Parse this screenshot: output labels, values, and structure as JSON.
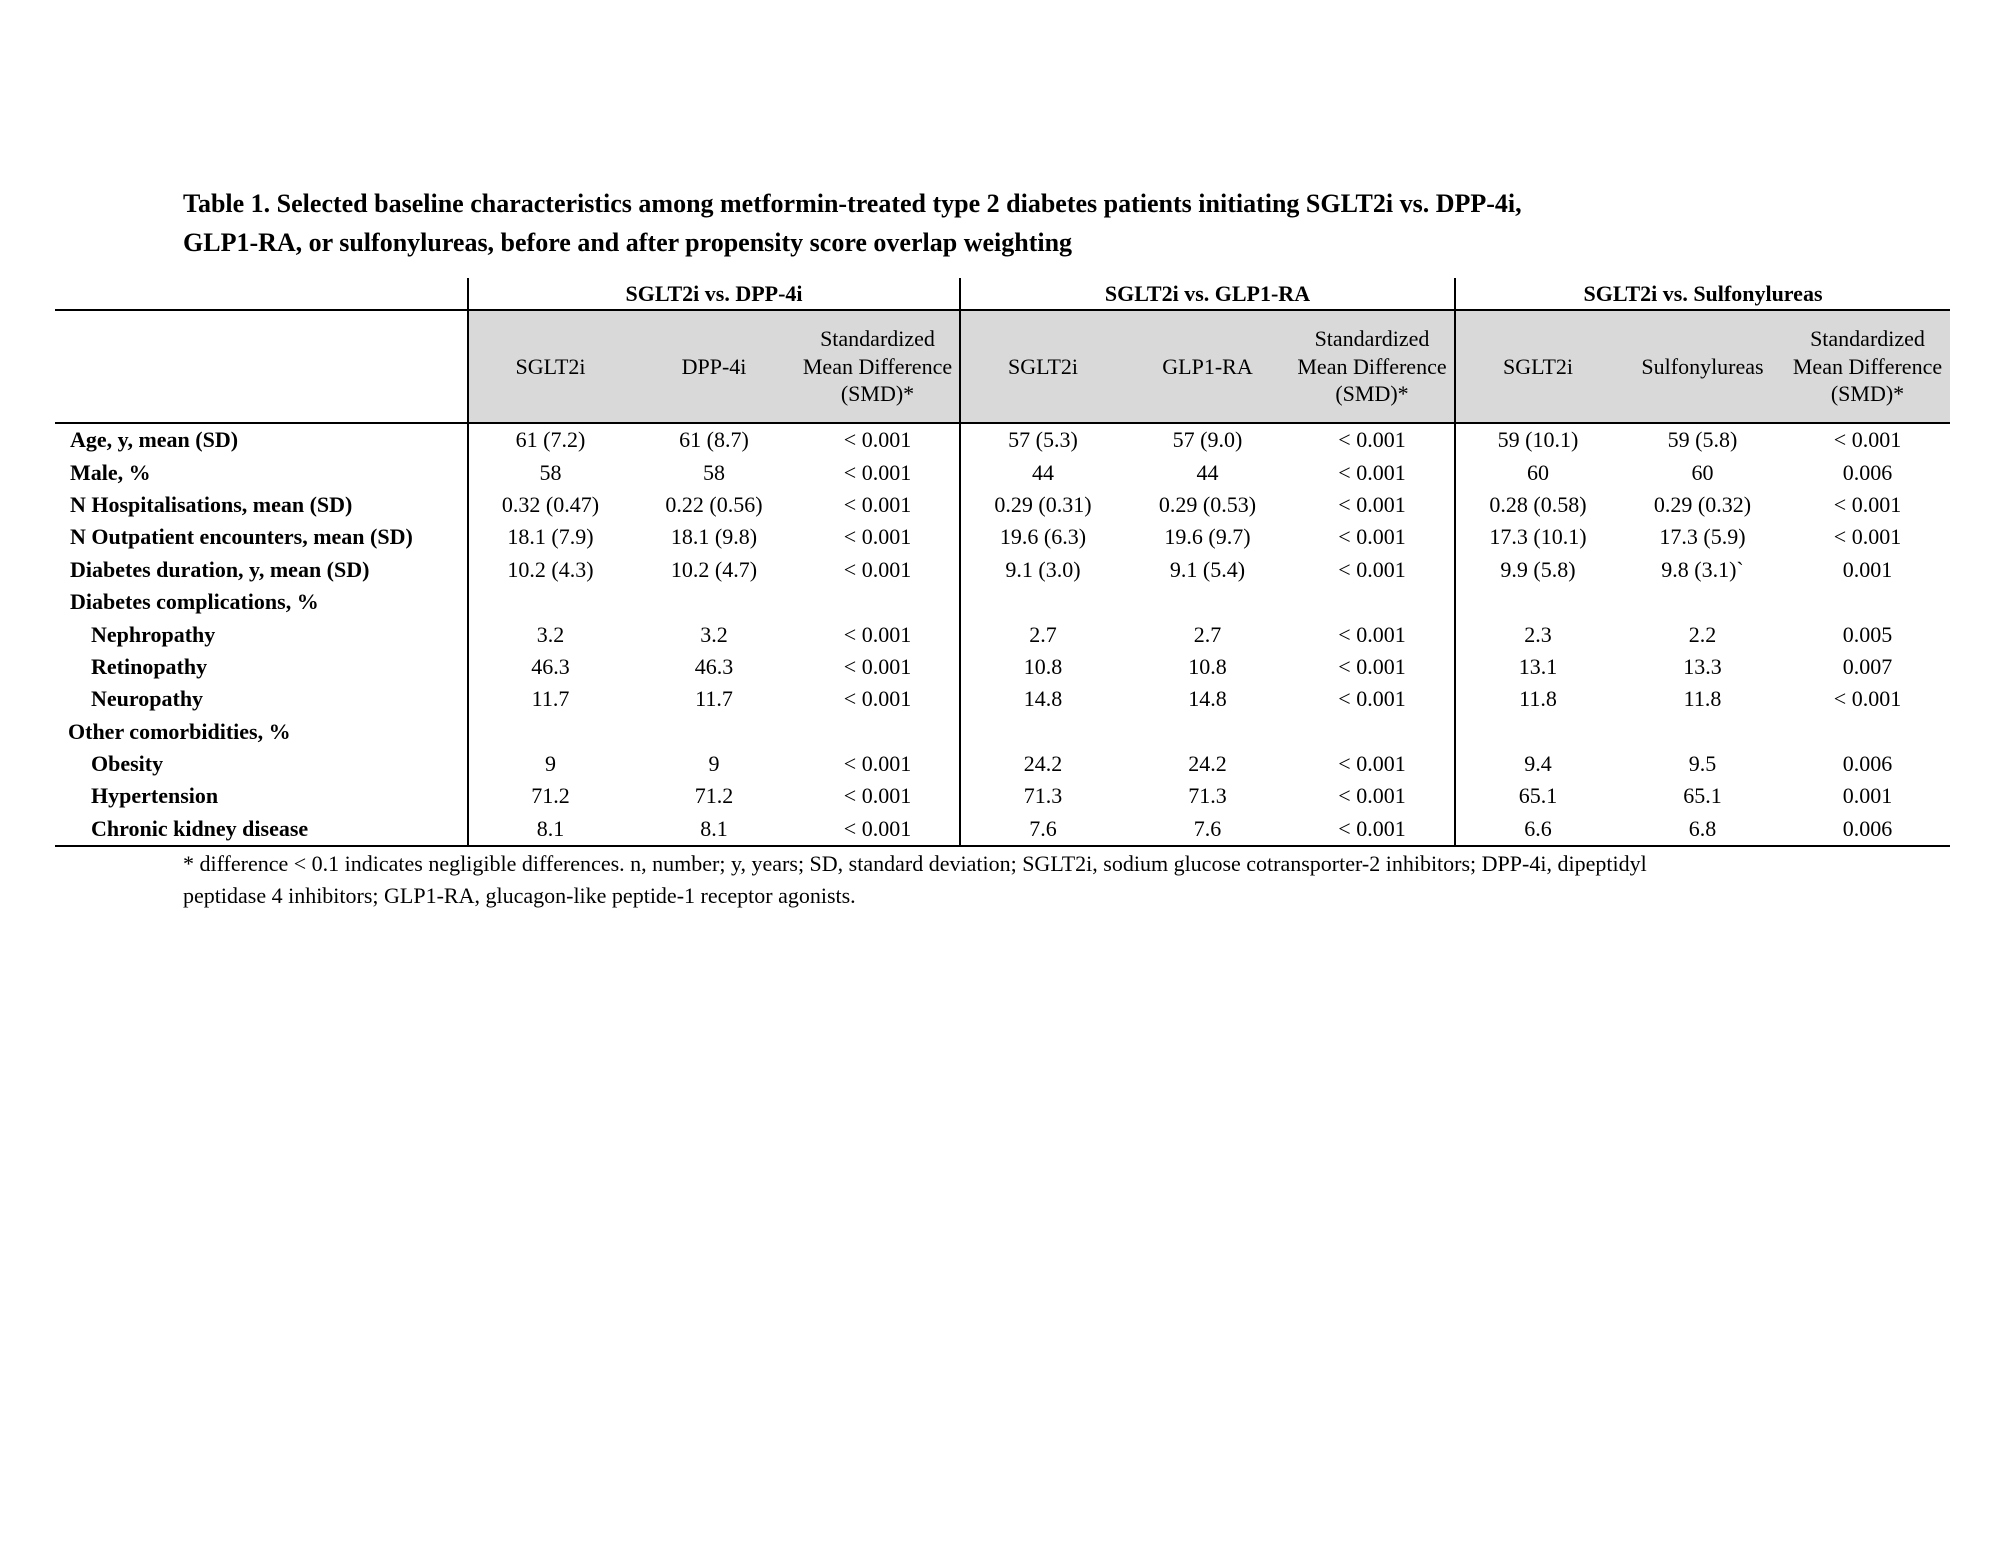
{
  "title_lines": [
    "Table 1. Selected baseline characteristics among metformin-treated type 2 diabetes patients initiating SGLT2i vs. DPP-4i,",
    "GLP1-RA, or sulfonylureas, before and after propensity score overlap weighting"
  ],
  "table": {
    "groups": [
      "SGLT2i vs. DPP-4i",
      "SGLT2i vs. GLP1-RA",
      "SGLT2i vs. Sulfonylureas"
    ],
    "subheaders": [
      [
        "SGLT2i",
        "DPP-4i",
        "Standardized Mean Difference (SMD)*"
      ],
      [
        "SGLT2i",
        "GLP1-RA",
        "Standardized Mean Difference (SMD)*"
      ],
      [
        "SGLT2i",
        "Sulfonylureas",
        "Standardized Mean Difference (SMD)*"
      ]
    ],
    "shade_color": "#d9d9d9",
    "rows": [
      {
        "label": "Age, y, mean (SD)",
        "level": "top",
        "values": [
          "61 (7.2)",
          "61 (8.7)",
          "< 0.001",
          "57 (5.3)",
          "57 (9.0)",
          "< 0.001",
          "59 (10.1)",
          "59 (5.8)",
          "< 0.001"
        ]
      },
      {
        "label": "Male, %",
        "level": "top",
        "values": [
          "58",
          "58",
          "< 0.001",
          "44",
          "44",
          "< 0.001",
          "60",
          "60",
          "0.006"
        ]
      },
      {
        "label": "N Hospitalisations, mean (SD)",
        "level": "top",
        "values": [
          "0.32 (0.47)",
          "0.22 (0.56)",
          "< 0.001",
          "0.29 (0.31)",
          "0.29 (0.53)",
          "< 0.001",
          "0.28 (0.58)",
          "0.29 (0.32)",
          "< 0.001"
        ]
      },
      {
        "label": "N Outpatient encounters, mean (SD)",
        "level": "top",
        "values": [
          "18.1 (7.9)",
          "18.1 (9.8)",
          "< 0.001",
          "19.6 (6.3)",
          "19.6 (9.7)",
          "< 0.001",
          "17.3 (10.1)",
          "17.3 (5.9)",
          "< 0.001"
        ]
      },
      {
        "label": "Diabetes duration, y, mean (SD)",
        "level": "top",
        "values": [
          "10.2 (4.3)",
          "10.2 (4.7)",
          "< 0.001",
          "9.1 (3.0)",
          "9.1 (5.4)",
          "< 0.001",
          "9.9 (5.8)",
          "9.8 (3.1)`",
          "0.001"
        ]
      },
      {
        "label": "Diabetes complications, %",
        "level": "top",
        "values": [
          "",
          "",
          "",
          "",
          "",
          "",
          "",
          "",
          ""
        ]
      },
      {
        "label": "Nephropathy",
        "level": "indent",
        "values": [
          "3.2",
          "3.2",
          "< 0.001",
          "2.7",
          "2.7",
          "< 0.001",
          "2.3",
          "2.2",
          "0.005"
        ]
      },
      {
        "label": "Retinopathy",
        "level": "indent",
        "values": [
          "46.3",
          "46.3",
          "< 0.001",
          "10.8",
          "10.8",
          "< 0.001",
          "13.1",
          "13.3",
          "0.007"
        ]
      },
      {
        "label": "Neuropathy",
        "level": "indent",
        "values": [
          "11.7",
          "11.7",
          "< 0.001",
          "14.8",
          "14.8",
          "< 0.001",
          "11.8",
          "11.8",
          "< 0.001"
        ]
      },
      {
        "label": "Other comorbidities, %",
        "level": "section",
        "values": [
          "",
          "",
          "",
          "",
          "",
          "",
          "",
          "",
          ""
        ]
      },
      {
        "label": "Obesity",
        "level": "indent",
        "values": [
          "9",
          "9",
          "< 0.001",
          "24.2",
          "24.2",
          "< 0.001",
          "9.4",
          "9.5",
          "0.006"
        ]
      },
      {
        "label": "Hypertension",
        "level": "indent",
        "values": [
          "71.2",
          "71.2",
          "< 0.001",
          "71.3",
          "71.3",
          "< 0.001",
          "65.1",
          "65.1",
          "0.001"
        ]
      },
      {
        "label": "Chronic kidney disease",
        "level": "indent",
        "values": [
          "8.1",
          "8.1",
          "< 0.001",
          "7.6",
          "7.6",
          "< 0.001",
          "6.6",
          "6.8",
          "0.006"
        ]
      }
    ]
  },
  "footnote_lines": [
    "* difference < 0.1 indicates negligible differences.  n, number; y, years; SD, standard deviation; SGLT2i, sodium glucose cotransporter-2 inhibitors; DPP-4i, dipeptidyl",
    "peptidase 4 inhibitors; GLP1-RA, glucagon-like peptide-1 receptor agonists."
  ]
}
